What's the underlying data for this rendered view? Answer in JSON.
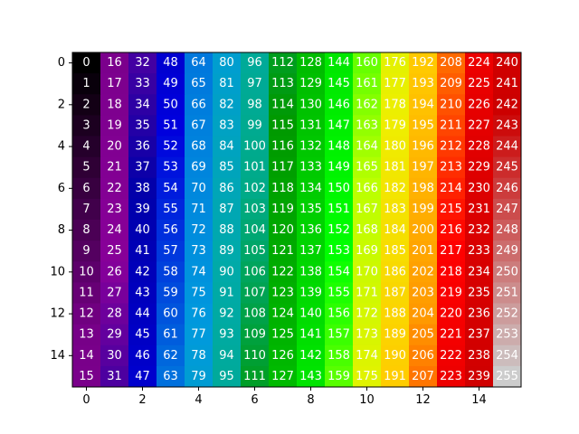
{
  "chart_data": {
    "type": "heatmap",
    "colormap": "nipy_spectral",
    "rows": 16,
    "cols": 16,
    "values": [
      [
        0,
        16,
        32,
        48,
        64,
        80,
        96,
        112,
        128,
        144,
        160,
        176,
        192,
        208,
        224,
        240
      ],
      [
        1,
        17,
        33,
        49,
        65,
        81,
        97,
        113,
        129,
        145,
        161,
        177,
        193,
        209,
        225,
        241
      ],
      [
        2,
        18,
        34,
        50,
        66,
        82,
        98,
        114,
        130,
        146,
        162,
        178,
        194,
        210,
        226,
        242
      ],
      [
        3,
        19,
        35,
        51,
        67,
        83,
        99,
        115,
        131,
        147,
        163,
        179,
        195,
        211,
        227,
        243
      ],
      [
        4,
        20,
        36,
        52,
        68,
        84,
        100,
        116,
        132,
        148,
        164,
        180,
        196,
        212,
        228,
        244
      ],
      [
        5,
        21,
        37,
        53,
        69,
        85,
        101,
        117,
        133,
        149,
        165,
        181,
        197,
        213,
        229,
        245
      ],
      [
        6,
        22,
        38,
        54,
        70,
        86,
        102,
        118,
        134,
        150,
        166,
        182,
        198,
        214,
        230,
        246
      ],
      [
        7,
        23,
        39,
        55,
        71,
        87,
        103,
        119,
        135,
        151,
        167,
        183,
        199,
        215,
        231,
        247
      ],
      [
        8,
        24,
        40,
        56,
        72,
        88,
        104,
        120,
        136,
        152,
        168,
        184,
        200,
        216,
        232,
        248
      ],
      [
        9,
        25,
        41,
        57,
        73,
        89,
        105,
        121,
        137,
        153,
        169,
        185,
        201,
        217,
        233,
        249
      ],
      [
        10,
        26,
        42,
        58,
        74,
        90,
        106,
        122,
        138,
        154,
        170,
        186,
        202,
        218,
        234,
        250
      ],
      [
        11,
        27,
        43,
        59,
        75,
        91,
        107,
        123,
        139,
        155,
        171,
        187,
        203,
        219,
        235,
        251
      ],
      [
        12,
        28,
        44,
        60,
        76,
        92,
        108,
        124,
        140,
        156,
        172,
        188,
        204,
        220,
        236,
        252
      ],
      [
        13,
        29,
        45,
        61,
        77,
        93,
        109,
        125,
        141,
        157,
        173,
        189,
        205,
        221,
        237,
        253
      ],
      [
        14,
        30,
        46,
        62,
        78,
        94,
        110,
        126,
        142,
        158,
        174,
        190,
        206,
        222,
        238,
        254
      ],
      [
        15,
        31,
        47,
        63,
        79,
        95,
        111,
        127,
        143,
        159,
        175,
        191,
        207,
        223,
        239,
        255
      ]
    ],
    "x_ticks": [
      0,
      2,
      4,
      6,
      8,
      10,
      12,
      14
    ],
    "y_ticks": [
      0,
      2,
      4,
      6,
      8,
      10,
      12,
      14
    ],
    "value_range": [
      0,
      255
    ],
    "grid": false
  }
}
